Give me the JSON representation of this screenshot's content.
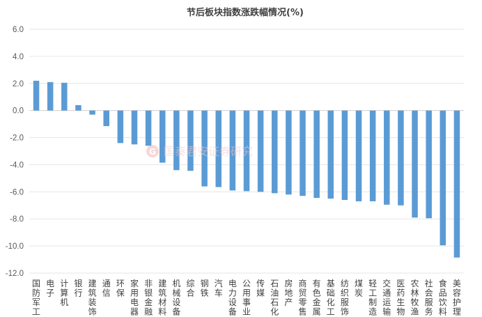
{
  "chart_data": {
    "type": "bar",
    "title": "节后板块指数涨跌幅情况(%)",
    "xlabel": "",
    "ylabel": "",
    "ylim": [
      -12,
      6
    ],
    "yticks": [
      "6.0",
      "4.0",
      "2.0",
      "0.0",
      "-2.0",
      "-4.0",
      "-6.0",
      "-8.0",
      "-10.0",
      "-12.0"
    ],
    "grid": true,
    "categories": [
      "国防军工",
      "电子",
      "计算机",
      "银行",
      "建筑装饰",
      "通信",
      "环保",
      "家用电器",
      "非银金融",
      "建筑材料",
      "机械设备",
      "综合",
      "钢铁",
      "汽车",
      "电力设备",
      "公用事业",
      "传媒",
      "石油石化",
      "房地产",
      "商贸零售",
      "有色金属",
      "基础化工",
      "纺织服饰",
      "煤炭",
      "轻工制造",
      "交通运输",
      "医药生物",
      "农林牧渔",
      "社会服务",
      "食品饮料",
      "美容护理"
    ],
    "values": [
      2.2,
      2.1,
      2.05,
      0.4,
      -0.3,
      -1.15,
      -2.4,
      -2.5,
      -2.6,
      -3.85,
      -4.4,
      -4.45,
      -5.6,
      -5.65,
      -5.9,
      -5.95,
      -6.0,
      -6.1,
      -6.2,
      -6.3,
      -6.45,
      -6.5,
      -6.6,
      -6.7,
      -6.7,
      -6.95,
      -7.0,
      -7.9,
      -7.95,
      -9.95,
      -10.85
    ]
  },
  "watermark": {
    "logo_letter": "G",
    "text": "国泰君安证券研究"
  },
  "colors": {
    "bar": "#5b9bd5",
    "grid": "#e6e6e6",
    "text": "#404040"
  }
}
